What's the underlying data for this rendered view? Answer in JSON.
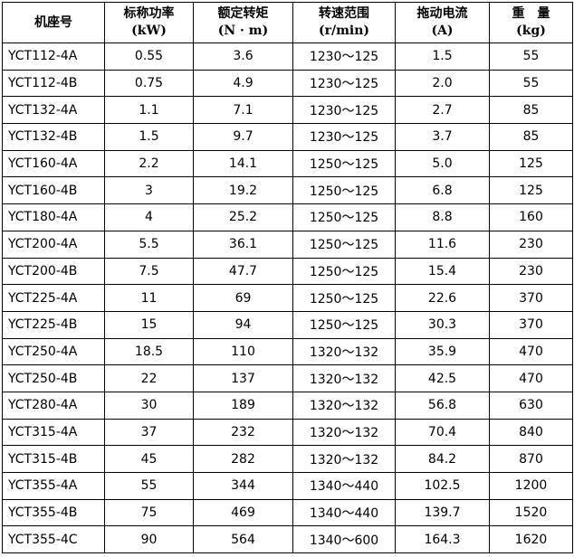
{
  "table": {
    "headers": [
      {
        "title": "机座号",
        "unit": ""
      },
      {
        "title": "标称功率",
        "unit": "(kW)"
      },
      {
        "title": "额定转矩",
        "unit": "(N · m)"
      },
      {
        "title": "转速范围",
        "unit": "(r/min)"
      },
      {
        "title": "拖动电流",
        "unit": "(A)"
      },
      {
        "title": "重　量",
        "unit": "(kg)"
      }
    ],
    "rows": [
      [
        "YCT112-4A",
        "0.55",
        "3.6",
        "1230～125",
        "1.5",
        "55"
      ],
      [
        "YCT112-4B",
        "0.75",
        "4.9",
        "1230～125",
        "2.0",
        "55"
      ],
      [
        "YCT132-4A",
        "1.1",
        "7.1",
        "1230～125",
        "2.7",
        "85"
      ],
      [
        "YCT132-4B",
        "1.5",
        "9.7",
        "1230～125",
        "3.7",
        "85"
      ],
      [
        "YCT160-4A",
        "2.2",
        "14.1",
        "1250～125",
        "5.0",
        "125"
      ],
      [
        "YCT160-4B",
        "3",
        "19.2",
        "1250～125",
        "6.8",
        "125"
      ],
      [
        "YCT180-4A",
        "4",
        "25.2",
        "1250～125",
        "8.8",
        "160"
      ],
      [
        "YCT200-4A",
        "5.5",
        "36.1",
        "1250～125",
        "11.6",
        "230"
      ],
      [
        "YCT200-4B",
        "7.5",
        "47.7",
        "1250～125",
        "15.4",
        "230"
      ],
      [
        "YCT225-4A",
        "11",
        "69",
        "1250～125",
        "22.6",
        "370"
      ],
      [
        "YCT225-4B",
        "15",
        "94",
        "1250～125",
        "30.3",
        "370"
      ],
      [
        "YCT250-4A",
        "18.5",
        "110",
        "1320～132",
        "35.9",
        "470"
      ],
      [
        "YCT250-4B",
        "22",
        "137",
        "1320～132",
        "42.5",
        "470"
      ],
      [
        "YCT280-4A",
        "30",
        "189",
        "1320～132",
        "56.8",
        "630"
      ],
      [
        "YCT315-4A",
        "37",
        "232",
        "1320～132",
        "70.4",
        "840"
      ],
      [
        "YCT315-4B",
        "45",
        "282",
        "1320～132",
        "84.2",
        "870"
      ],
      [
        "YCT355-4A",
        "55",
        "344",
        "1340～440",
        "102.5",
        "1200"
      ],
      [
        "YCT355-4B",
        "75",
        "469",
        "1340～440",
        "139.7",
        "1520"
      ],
      [
        "YCT355-4C",
        "90",
        "564",
        "1340～600",
        "164.3",
        "1620"
      ]
    ]
  }
}
